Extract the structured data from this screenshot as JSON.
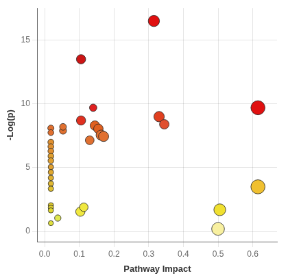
{
  "chart_data": {
    "type": "bubble",
    "xlabel": "Pathway Impact",
    "ylabel": "-Log(p)",
    "x": [
      0.315,
      0.105,
      0.615,
      0.14,
      0.105,
      0.33,
      0.345,
      0.145,
      0.155,
      0.163,
      0.17,
      0.13,
      0.053,
      0.053,
      0.018,
      0.018,
      0.018,
      0.018,
      0.018,
      0.018,
      0.018,
      0.018,
      0.018,
      0.018,
      0.018,
      0.018,
      0.018,
      0.018,
      0.018,
      0.018,
      0.038,
      0.103,
      0.113,
      0.505,
      0.5,
      0.615
    ],
    "values": [
      16.5,
      13.5,
      9.7,
      9.7,
      8.7,
      9.0,
      8.4,
      8.3,
      8.05,
      7.55,
      7.45,
      7.15,
      7.9,
      8.2,
      8.1,
      7.75,
      7.0,
      6.65,
      6.3,
      5.9,
      5.55,
      5.05,
      4.65,
      4.2,
      3.75,
      3.35,
      2.05,
      1.85,
      1.65,
      0.65,
      1.05,
      1.55,
      1.9,
      1.7,
      0.2,
      3.5
    ],
    "sizes": [
      140,
      95,
      220,
      60,
      95,
      120,
      100,
      100,
      100,
      115,
      115,
      85,
      55,
      50,
      42,
      38,
      40,
      38,
      38,
      35,
      35,
      32,
      32,
      32,
      32,
      32,
      32,
      32,
      30,
      28,
      45,
      95,
      80,
      155,
      180,
      220
    ],
    "colors": [
      "#e01010",
      "#cc1515",
      "#e01010",
      "#e02020",
      "#e03020",
      "#e04020",
      "#e05030",
      "#e06020",
      "#e06020",
      "#e07030",
      "#e07030",
      "#e07030",
      "#e07030",
      "#e07030",
      "#e07030",
      "#e07030",
      "#e09030",
      "#e09030",
      "#e09030",
      "#e0a030",
      "#e0a030",
      "#e0a030",
      "#e0a830",
      "#e0b030",
      "#e0b830",
      "#e0c030",
      "#e0cc30",
      "#e0d030",
      "#e0d830",
      "#e0e040",
      "#e0e850",
      "#f0e840",
      "#f0e840",
      "#f0e030",
      "#f8f0a0",
      "#f0c030"
    ],
    "xlim": [
      -0.02,
      0.67
    ],
    "ylim": [
      -0.8,
      17.5
    ],
    "xticks": [
      {
        "value": 0.0,
        "label": "0.0"
      },
      0.1,
      0.2,
      0.3,
      0.4,
      0.5,
      0.6
    ],
    "yticks": [
      0,
      5,
      10,
      15
    ],
    "grid": true
  }
}
